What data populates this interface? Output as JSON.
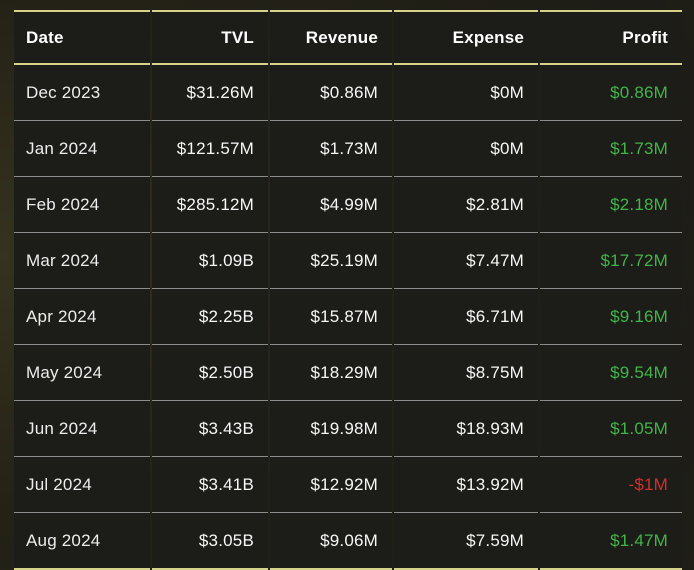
{
  "chart_data": {
    "type": "table",
    "columns": [
      "Date",
      "TVL",
      "Revenue",
      "Expense",
      "Profit"
    ],
    "column_keys": [
      "date",
      "tvl",
      "revenue",
      "expense",
      "profit"
    ],
    "rows": [
      [
        "Dec 2023",
        "$31.26M",
        "$0.86M",
        "$0M",
        "$0.86M"
      ],
      [
        "Jan 2024",
        "$121.57M",
        "$1.73M",
        "$0M",
        "$1.73M"
      ],
      [
        "Feb 2024",
        "$285.12M",
        "$4.99M",
        "$2.81M",
        "$2.18M"
      ],
      [
        "Mar 2024",
        "$1.09B",
        "$25.19M",
        "$7.47M",
        "$17.72M"
      ],
      [
        "Apr 2024",
        "$2.25B",
        "$15.87M",
        "$6.71M",
        "$9.16M"
      ],
      [
        "May 2024",
        "$2.50B",
        "$18.29M",
        "$8.75M",
        "$9.54M"
      ],
      [
        "Jun 2024",
        "$3.43B",
        "$19.98M",
        "$18.93M",
        "$1.05M"
      ],
      [
        "Jul 2024",
        "$3.41B",
        "$12.92M",
        "$13.92M",
        "-$1M"
      ],
      [
        "Aug 2024",
        "$3.05B",
        "$9.06M",
        "$7.59M",
        "$1.47M"
      ]
    ]
  },
  "colors": {
    "accent_line": "#d5d389",
    "row_divider": "#8d8d8d",
    "profit_positive": "#41b549",
    "profit_negative": "#d32f2f",
    "cell_background": "#1c1c18"
  }
}
